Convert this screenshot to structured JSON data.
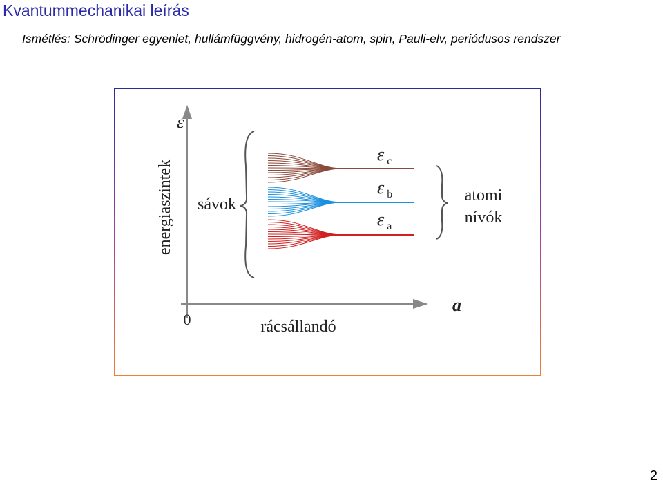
{
  "header": {
    "title": "Kvantummechanikai leírás",
    "subtitle": "Ismétlés: Schrödinger egyenlet, hullámfüggvény, hidrogén-atom, spin, Pauli-elv, periódusos rendszer"
  },
  "figure": {
    "y_axis_symbol": "ε",
    "y_axis_label": "energiaszintek",
    "bands_label": "sávok",
    "levels": [
      {
        "symbol": "ε",
        "sub": "c"
      },
      {
        "symbol": "ε",
        "sub": "b"
      },
      {
        "symbol": "ε",
        "sub": "a"
      }
    ],
    "levels_label": [
      "atomi",
      "nívók"
    ],
    "x_axis_symbol": "a",
    "origin": "0",
    "x_axis_label": "rácsállandó"
  },
  "footer": {
    "page": "2"
  }
}
